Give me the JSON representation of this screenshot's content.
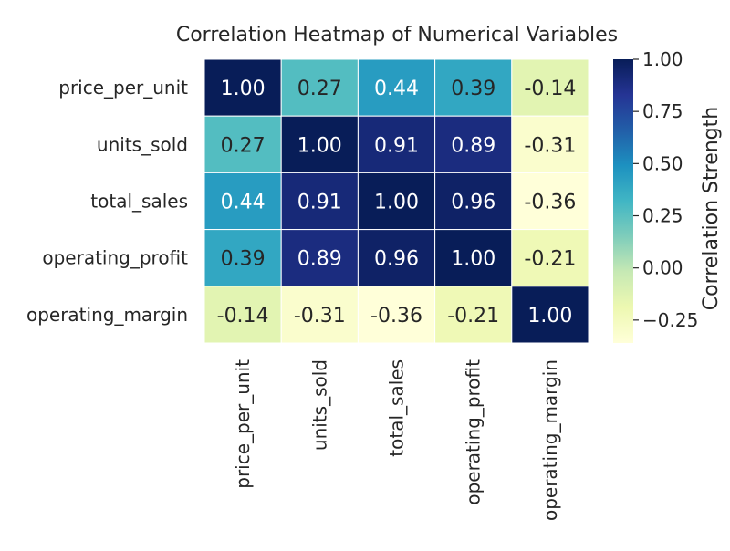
{
  "chart_data": {
    "type": "heatmap",
    "title": "Correlation Heatmap of Numerical Variables",
    "row_labels": [
      "price_per_unit",
      "units_sold",
      "total_sales",
      "operating_profit",
      "operating_margin"
    ],
    "col_labels": [
      "price_per_unit",
      "units_sold",
      "total_sales",
      "operating_profit",
      "operating_margin"
    ],
    "values": [
      [
        1.0,
        0.27,
        0.44,
        0.39,
        -0.14
      ],
      [
        0.27,
        1.0,
        0.91,
        0.89,
        -0.31
      ],
      [
        0.44,
        0.91,
        1.0,
        0.96,
        -0.36
      ],
      [
        0.39,
        0.89,
        0.96,
        1.0,
        -0.21
      ],
      [
        -0.14,
        -0.31,
        -0.36,
        -0.21,
        1.0
      ]
    ],
    "cell_labels": [
      [
        "1.00",
        "0.27",
        "0.44",
        "0.39",
        "-0.14"
      ],
      [
        "0.27",
        "1.00",
        "0.91",
        "0.89",
        "-0.31"
      ],
      [
        "0.44",
        "0.91",
        "1.00",
        "0.96",
        "-0.36"
      ],
      [
        "0.39",
        "0.89",
        "0.96",
        "1.00",
        "-0.21"
      ],
      [
        "-0.14",
        "-0.31",
        "-0.36",
        "-0.21",
        "1.00"
      ]
    ],
    "colorbar": {
      "label": "Correlation Strength",
      "range": [
        -0.36,
        1.0
      ],
      "ticks": [
        1.0,
        0.75,
        0.5,
        0.25,
        0.0,
        -0.25
      ],
      "tick_labels": [
        "1.00",
        "0.75",
        "0.50",
        "0.25",
        "0.00",
        "−0.25"
      ],
      "colormap": "YlGnBu",
      "colormap_stops": [
        "#ffffd9",
        "#edf8b1",
        "#c7e9b4",
        "#7fcdbb",
        "#41b6c4",
        "#1d91c0",
        "#225ea8",
        "#253494",
        "#081d58"
      ]
    },
    "cell_border_color": "#ffffff"
  }
}
